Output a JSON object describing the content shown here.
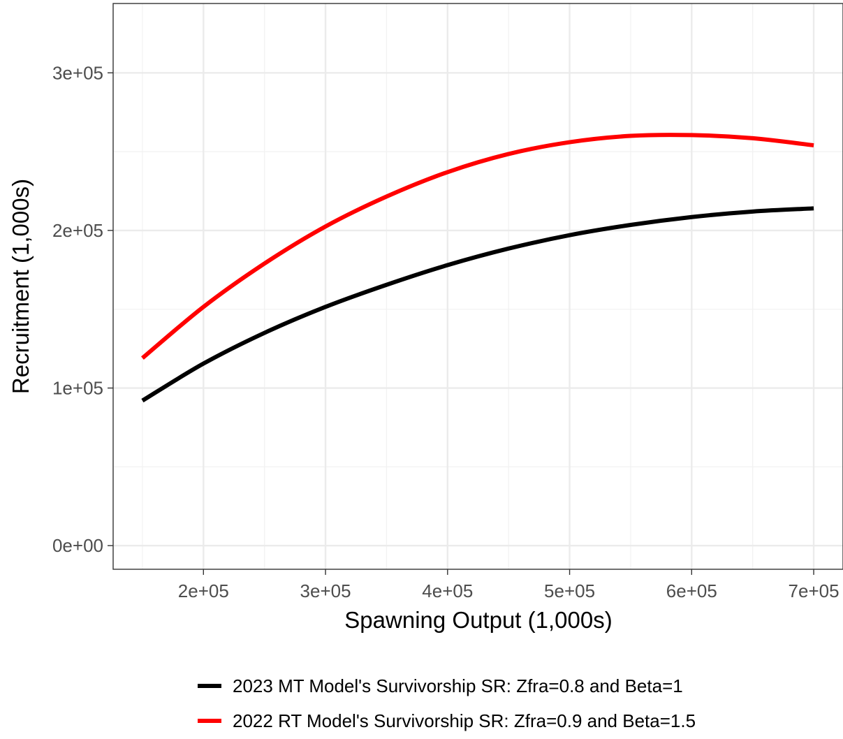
{
  "chart_data": {
    "type": "line",
    "title": "",
    "xlabel": "Spawning Output (1,000s)",
    "ylabel": "Recruitment (1,000s)",
    "xlim": [
      126000,
      724000
    ],
    "ylim": [
      -15000,
      344000
    ],
    "x_ticks": [
      200000,
      300000,
      400000,
      500000,
      600000,
      700000
    ],
    "x_tick_labels": [
      "2e+05",
      "3e+05",
      "4e+05",
      "5e+05",
      "6e+05",
      "7e+05"
    ],
    "y_ticks": [
      0,
      100000,
      200000,
      300000
    ],
    "y_tick_labels": [
      "0e+00",
      "1e+05",
      "2e+05",
      "3e+05"
    ],
    "grid": true,
    "legend_position": "bottom",
    "series": [
      {
        "name": "2023 MT Model's Survivorship SR: Zfra=0.8 and Beta=1",
        "color": "#000000",
        "x": [
          150000,
          200000,
          250000,
          300000,
          350000,
          400000,
          450000,
          500000,
          550000,
          600000,
          650000,
          700000
        ],
        "y": [
          92000,
          115500,
          135000,
          151500,
          165500,
          178000,
          188500,
          197000,
          203500,
          208500,
          212000,
          214000
        ]
      },
      {
        "name": "2022 RT Model's Survivorship SR: Zfra=0.9 and Beta=1.5",
        "color": "#ff0000",
        "x": [
          150000,
          200000,
          250000,
          300000,
          350000,
          400000,
          450000,
          500000,
          550000,
          600000,
          650000,
          700000
        ],
        "y": [
          119000,
          151500,
          179000,
          202500,
          221500,
          237000,
          248500,
          256000,
          260000,
          260500,
          258500,
          254000
        ]
      }
    ]
  }
}
